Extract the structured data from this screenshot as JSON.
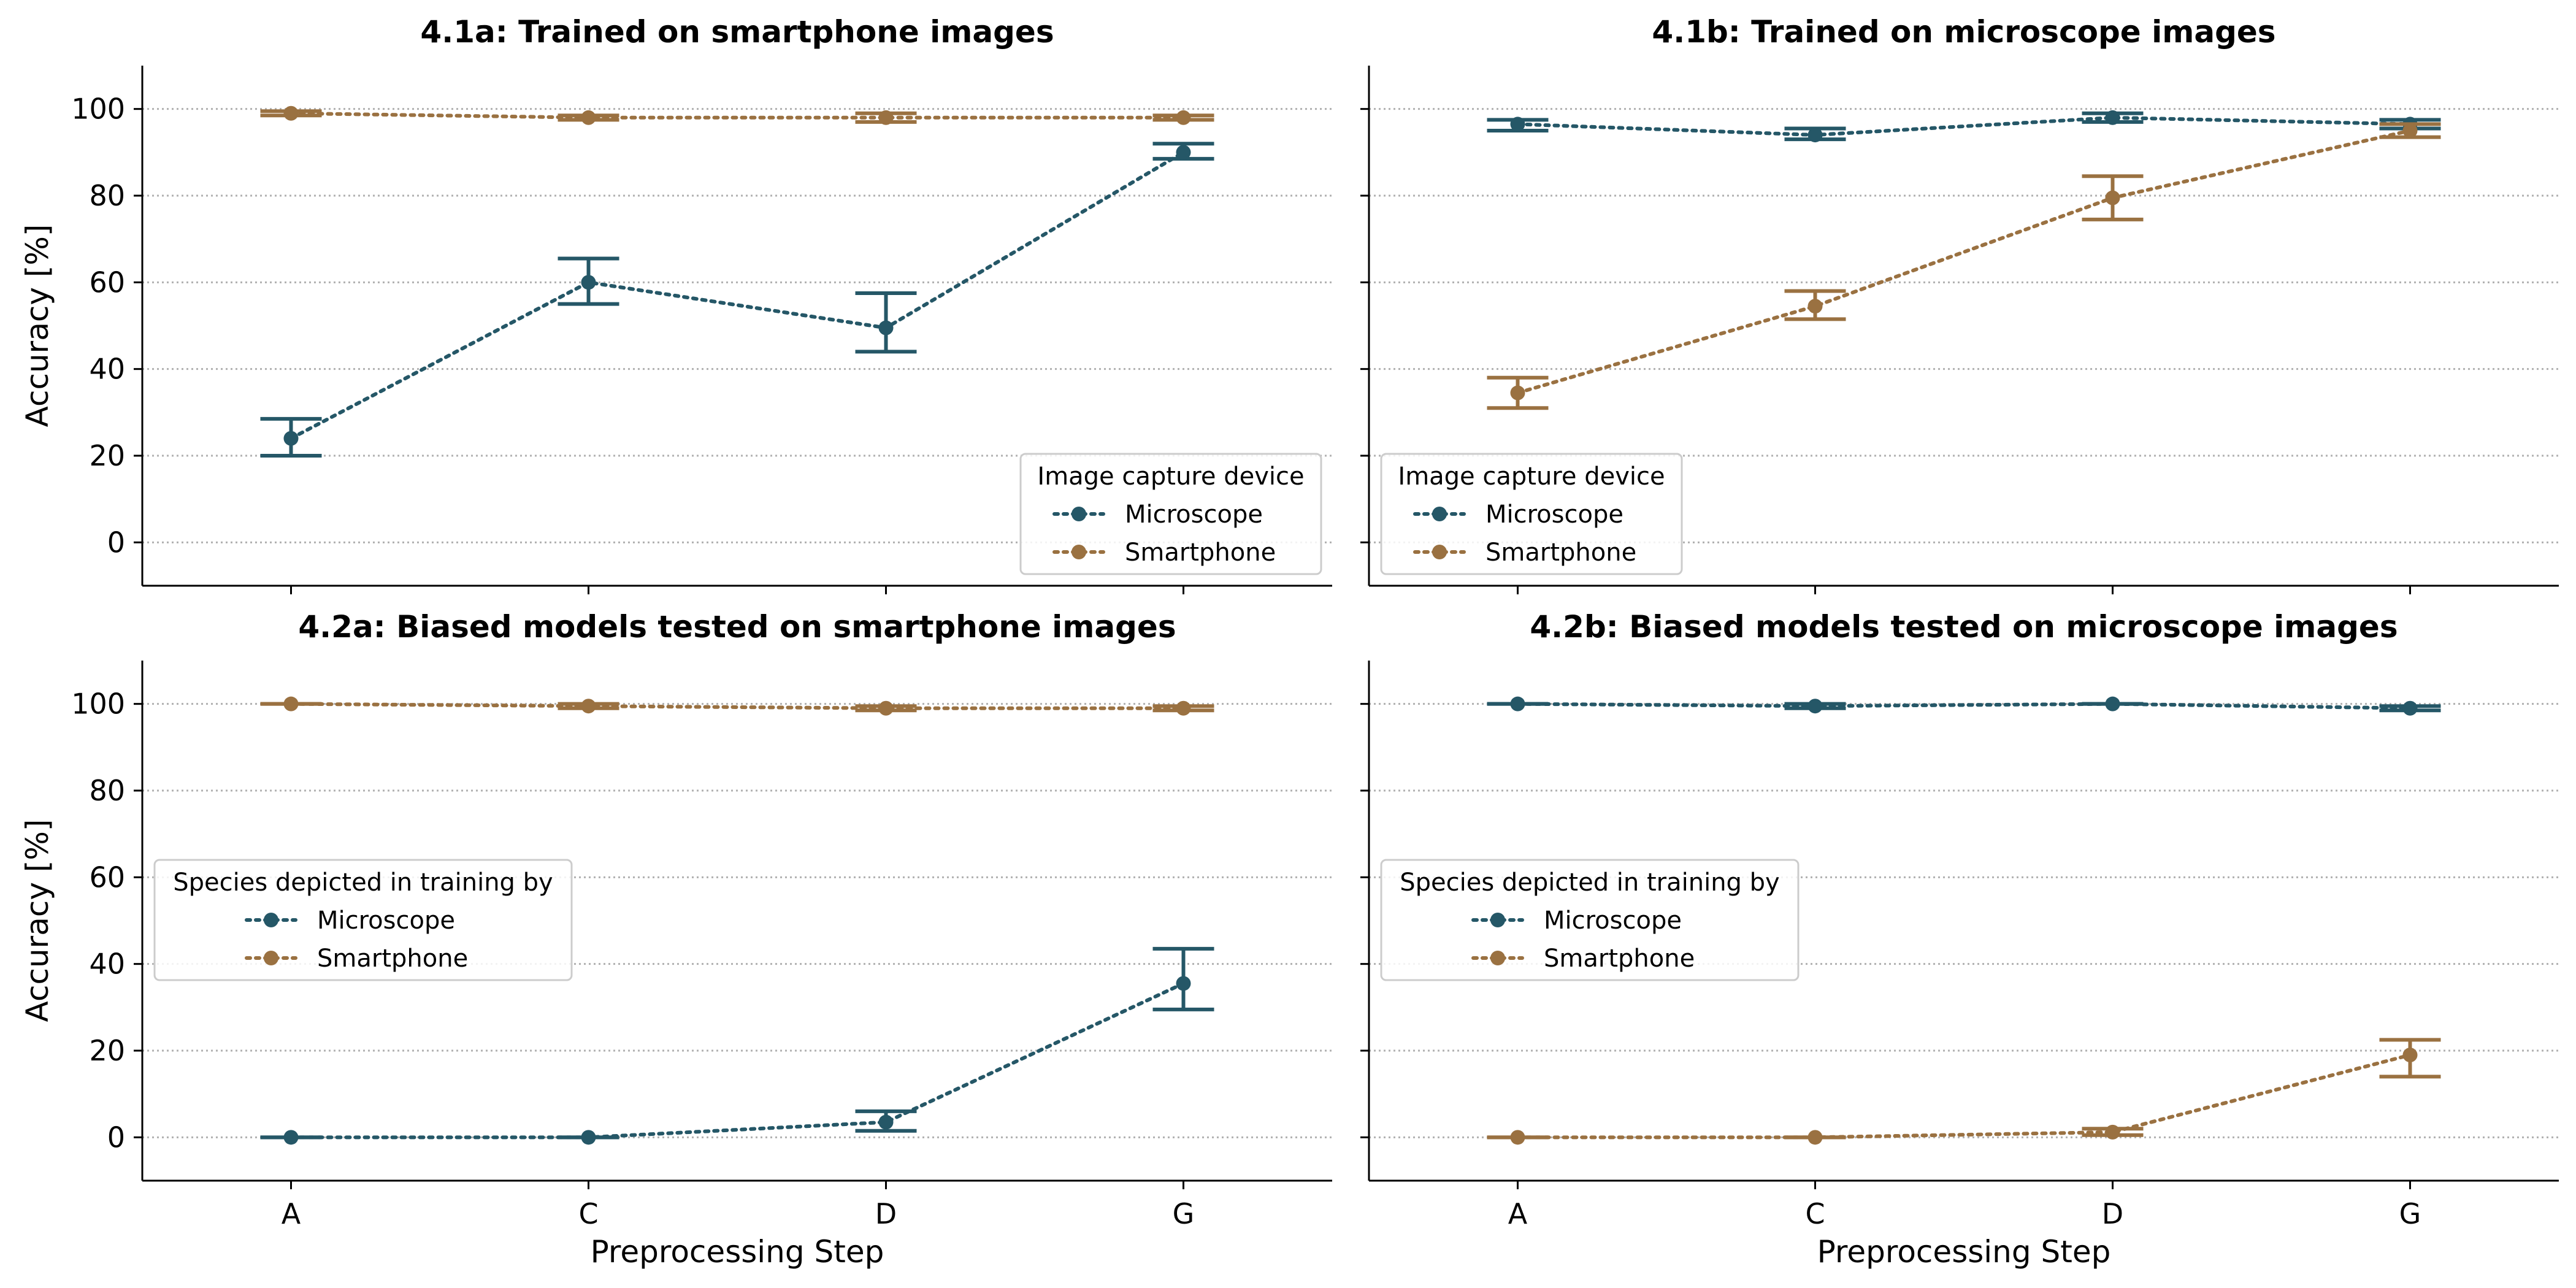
{
  "colors": {
    "microscope": "#255767",
    "smartphone": "#9a7141",
    "grid": "#b0b0b0",
    "axis": "#000000",
    "background": "#ffffff"
  },
  "chart_data": [
    {
      "type": "line",
      "title": "4.1a: Trained on smartphone images",
      "xlabel": "",
      "ylabel": "Accuracy [%]",
      "categories": [
        "A",
        "C",
        "D",
        "G"
      ],
      "ylim": [
        -10,
        110
      ],
      "yticks": [
        0,
        20,
        40,
        60,
        80,
        100
      ],
      "grid": "horizontal dotted",
      "legend": {
        "title": "Image capture device",
        "placement": "bottom-right"
      },
      "series": [
        {
          "name": "Microscope",
          "color": "#255767",
          "values": [
            24,
            60,
            49.5,
            90
          ],
          "err_low": [
            20,
            55,
            44,
            88.5
          ],
          "err_high": [
            28.5,
            65.5,
            57.5,
            92
          ]
        },
        {
          "name": "Smartphone",
          "color": "#9a7141",
          "values": [
            99,
            98,
            98,
            98
          ],
          "err_low": [
            98.5,
            97.5,
            97,
            97.5
          ],
          "err_high": [
            99.5,
            98.5,
            99,
            98.5
          ]
        }
      ]
    },
    {
      "type": "line",
      "title": "4.1b: Trained on microscope images",
      "xlabel": "",
      "ylabel": "",
      "categories": [
        "A",
        "C",
        "D",
        "G"
      ],
      "ylim": [
        -10,
        110
      ],
      "yticks": [
        0,
        20,
        40,
        60,
        80,
        100
      ],
      "grid": "horizontal dotted",
      "legend": {
        "title": "Image capture device",
        "placement": "bottom-left"
      },
      "series": [
        {
          "name": "Microscope",
          "color": "#255767",
          "values": [
            96.5,
            94,
            98,
            96.5
          ],
          "err_low": [
            95,
            93,
            97,
            95.5
          ],
          "err_high": [
            97.5,
            95.5,
            99,
            97.5
          ]
        },
        {
          "name": "Smartphone",
          "color": "#9a7141",
          "values": [
            34.5,
            54.5,
            79.5,
            95
          ],
          "err_low": [
            31,
            51.5,
            74.5,
            93.5
          ],
          "err_high": [
            38,
            58,
            84.5,
            96.5
          ]
        }
      ]
    },
    {
      "type": "line",
      "title": "4.2a: Biased models tested on smartphone images",
      "xlabel": "Preprocessing Step",
      "ylabel": "Accuracy [%]",
      "categories": [
        "A",
        "C",
        "D",
        "G"
      ],
      "ylim": [
        -10,
        110
      ],
      "yticks": [
        0,
        20,
        40,
        60,
        80,
        100
      ],
      "grid": "horizontal dotted",
      "legend": {
        "title": "Species depicted in training by",
        "placement": "center-left"
      },
      "series": [
        {
          "name": "Microscope",
          "color": "#255767",
          "values": [
            0,
            0,
            3.5,
            35.5
          ],
          "err_low": [
            0,
            0,
            1.5,
            29.5
          ],
          "err_high": [
            0,
            0,
            6,
            43.5
          ]
        },
        {
          "name": "Smartphone",
          "color": "#9a7141",
          "values": [
            100,
            99.5,
            99,
            99
          ],
          "err_low": [
            100,
            99,
            98.5,
            98.5
          ],
          "err_high": [
            100,
            100,
            99.5,
            99.5
          ]
        }
      ]
    },
    {
      "type": "line",
      "title": "4.2b: Biased models tested on microscope images",
      "xlabel": "Preprocessing Step",
      "ylabel": "",
      "categories": [
        "A",
        "C",
        "D",
        "G"
      ],
      "ylim": [
        -10,
        110
      ],
      "yticks": [
        0,
        20,
        40,
        60,
        80,
        100
      ],
      "grid": "horizontal dotted",
      "legend": {
        "title": "Species depicted in training by",
        "placement": "center-left"
      },
      "series": [
        {
          "name": "Microscope",
          "color": "#255767",
          "values": [
            100,
            99.5,
            100,
            99
          ],
          "err_low": [
            100,
            99,
            100,
            98.5
          ],
          "err_high": [
            100,
            100,
            100,
            99.5
          ]
        },
        {
          "name": "Smartphone",
          "color": "#9a7141",
          "values": [
            0,
            0,
            1.2,
            19
          ],
          "err_low": [
            0,
            0,
            0.5,
            14
          ],
          "err_high": [
            0,
            0,
            2,
            22.5
          ]
        }
      ]
    }
  ]
}
